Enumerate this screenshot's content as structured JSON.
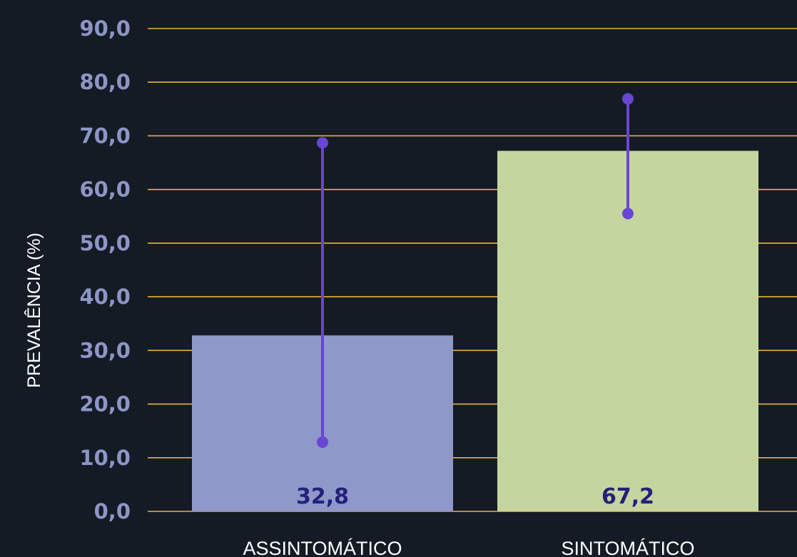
{
  "chart_data": {
    "type": "bar",
    "ylabel": "PREVALÊNCIA (%)",
    "xlabel": "",
    "ylim": [
      0,
      90
    ],
    "yticks": [
      "0,0",
      "10,0",
      "20,0",
      "30,0",
      "40,0",
      "50,0",
      "60,0",
      "70,0",
      "80,0",
      "90,0"
    ],
    "categories": [
      "ASSINTOMÁTICO",
      "SINTOMÁTICO"
    ],
    "values": [
      32.8,
      67.2
    ],
    "value_labels": [
      "32,8",
      "67,2"
    ],
    "error_bars": [
      {
        "low": 12.9,
        "high": 68.7
      },
      {
        "low": 55.5,
        "high": 76.9
      }
    ],
    "grid": true,
    "colors": {
      "background": "#141b25",
      "grid": "#e8b33a",
      "bars": [
        "#8e98c9",
        "#c5d59f"
      ],
      "error_bar": "#6a45d6",
      "tick_label": "#8e95c6",
      "value_label": "#23217a",
      "text": "#ffffff"
    }
  }
}
